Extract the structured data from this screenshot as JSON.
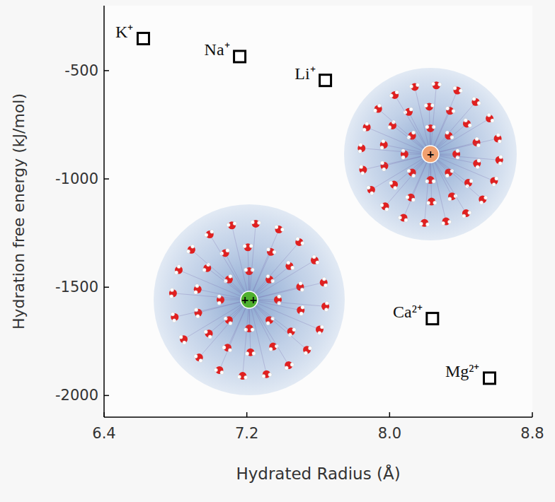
{
  "chart_data": {
    "type": "scatter",
    "x_label": "Hydrated Radius (Å)",
    "y_label": "Hydration free energy (kJ/mol)",
    "x": [
      6.62,
      7.16,
      7.64,
      8.24,
      8.56
    ],
    "values": [
      -352,
      -435,
      -545,
      -1645,
      -1920
    ],
    "labels": [
      "K⁺",
      "Na⁺",
      "Li⁺",
      "Ca²⁺",
      "Mg²⁺"
    ],
    "annotations": [
      "+",
      "++"
    ],
    "xlim": [
      6.4,
      8.8
    ],
    "ylim": [
      -2100,
      -200
    ],
    "xticks": [
      6.4,
      7.2,
      {
        "value": 8,
        "label": "8.0"
      },
      8.8
    ],
    "yticks": [
      -2000,
      -1500,
      -1000,
      -500
    ],
    "marker": "square",
    "color": "#000000",
    "grid": false
  }
}
